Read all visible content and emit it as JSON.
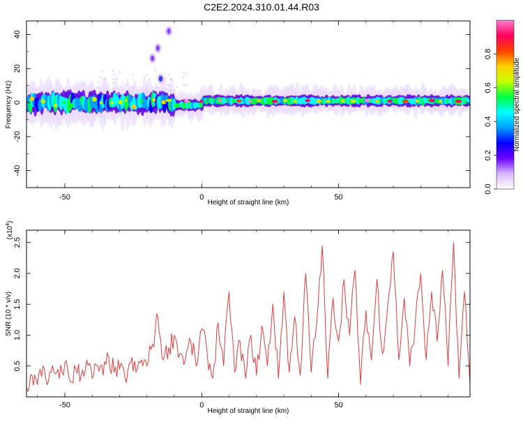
{
  "title": "C2E2.2024.310.01.44.R03",
  "chart_data": [
    {
      "type": "heatmap",
      "xlabel": "Height of straight line (km)",
      "ylabel": "Frequency (Hz)",
      "xlim": [
        -64,
        98
      ],
      "ylim": [
        -50,
        48
      ],
      "x_ticks": [
        -50,
        0,
        50
      ],
      "y_ticks": [
        -40,
        -20,
        0,
        20,
        40
      ],
      "colorbar": {
        "label": "Normalized spectral amplitude",
        "range": [
          0,
          1
        ],
        "ticks": [
          "0.0",
          "0.2",
          "0.4",
          "0.6",
          "0.8"
        ],
        "tick_values": [
          0,
          0.2,
          0.4,
          0.6,
          0.8
        ],
        "colors": [
          "#ffffff",
          "#d8b8ff",
          "#6a00ff",
          "#0000ff",
          "#00a0ff",
          "#00ffff",
          "#00ff40",
          "#c8ff00",
          "#ffd000",
          "#ff4000",
          "#ff0060",
          "#ff80d0"
        ]
      },
      "features": [
        {
          "x": -16,
          "y": 32,
          "amplitude": 0.15
        },
        {
          "x": -18,
          "y": 26,
          "amplitude": 0.15
        },
        {
          "x": -15,
          "y": 14,
          "amplitude": 0.2
        },
        {
          "x": -12,
          "y": 42,
          "amplitude": 0.05
        }
      ]
    },
    {
      "type": "line",
      "xlabel": "Height of straight line (km)",
      "ylabel": "SNR (10 * v/v)",
      "y_multiplier": "(x10",
      "y_multiplier_exp": "4",
      "y_multiplier_close": ")",
      "xlim": [
        -64,
        98
      ],
      "ylim": [
        0,
        2.7
      ],
      "x_ticks": [
        -50,
        0,
        50
      ],
      "y_ticks": [
        0.5,
        1.0,
        1.5,
        2.0,
        2.5
      ],
      "y_tick_labels": [
        "0.5",
        "1.0",
        "1.5",
        "2.0",
        "2.5"
      ],
      "line_color": "#e03a3a",
      "series": [
        {
          "x": [
            -64,
            -62,
            -60,
            -58,
            -56,
            -54,
            -52,
            -50,
            -48,
            -46,
            -44,
            -42,
            -40,
            -38,
            -36,
            -34,
            -32,
            -30,
            -28,
            -26,
            -24,
            -22,
            -20,
            -18,
            -16,
            -14,
            -12,
            -10,
            -8,
            -6,
            -4,
            -2,
            0,
            2,
            4,
            6,
            8,
            10,
            12,
            14,
            16,
            18,
            20,
            22,
            24,
            26,
            28,
            30,
            32,
            34,
            36,
            38,
            40,
            42,
            44,
            46,
            48,
            50,
            52,
            54,
            56,
            58,
            60,
            62,
            64,
            66,
            68,
            70,
            72,
            74,
            76,
            78,
            80,
            82,
            84,
            86,
            88,
            90,
            92,
            94,
            96,
            98
          ],
          "y": [
            0.15,
            0.35,
            0.2,
            0.5,
            0.25,
            0.4,
            0.3,
            0.55,
            0.25,
            0.45,
            0.35,
            0.6,
            0.3,
            0.5,
            0.35,
            0.65,
            0.4,
            0.45,
            0.3,
            0.55,
            0.4,
            0.6,
            0.5,
            0.85,
            1.3,
            0.6,
            0.8,
            1.0,
            0.7,
            0.6,
            0.9,
            0.5,
            1.1,
            0.7,
            0.3,
            1.2,
            0.5,
            1.7,
            0.4,
            0.9,
            0.3,
            1.0,
            0.35,
            1.15,
            0.5,
            1.5,
            0.3,
            1.7,
            0.4,
            1.3,
            0.35,
            2.0,
            0.4,
            1.2,
            2.45,
            0.3,
            1.6,
            0.9,
            1.9,
            1.0,
            2.05,
            0.2,
            1.4,
            0.6,
            1.9,
            0.7,
            1.5,
            2.35,
            0.6,
            1.6,
            0.5,
            1.2,
            2.0,
            0.6,
            1.7,
            0.9,
            2.05,
            0.5,
            2.5,
            0.3,
            1.7,
            0.2
          ]
        }
      ]
    }
  ]
}
